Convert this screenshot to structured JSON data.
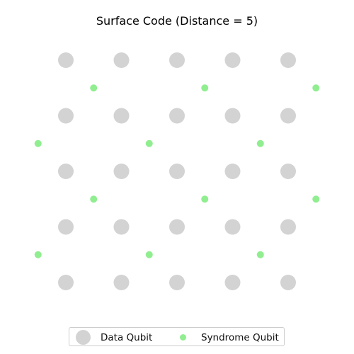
{
  "title": "Surface Code (Distance = 5)",
  "colors": {
    "data_qubit": "#d3d3d3",
    "syndrome_qubit": "#90ee90"
  },
  "diagram": {
    "distance": 5,
    "data_qubits": {
      "rows": 5,
      "cols": 5
    },
    "syndrome_qubits": [
      {
        "row": 0.5,
        "col": 0.5
      },
      {
        "row": 0.5,
        "col": 2.5
      },
      {
        "row": 0.5,
        "col": 4.5
      },
      {
        "row": 1.5,
        "col": -0.5
      },
      {
        "row": 1.5,
        "col": 1.5
      },
      {
        "row": 1.5,
        "col": 3.5
      },
      {
        "row": 2.5,
        "col": 0.5
      },
      {
        "row": 2.5,
        "col": 2.5
      },
      {
        "row": 2.5,
        "col": 4.5
      },
      {
        "row": 3.5,
        "col": -0.5
      },
      {
        "row": 3.5,
        "col": 1.5
      },
      {
        "row": 3.5,
        "col": 3.5
      }
    ]
  },
  "legend": {
    "data_qubit_label": "Data Qubit",
    "syndrome_qubit_label": "Syndrome Qubit"
  }
}
